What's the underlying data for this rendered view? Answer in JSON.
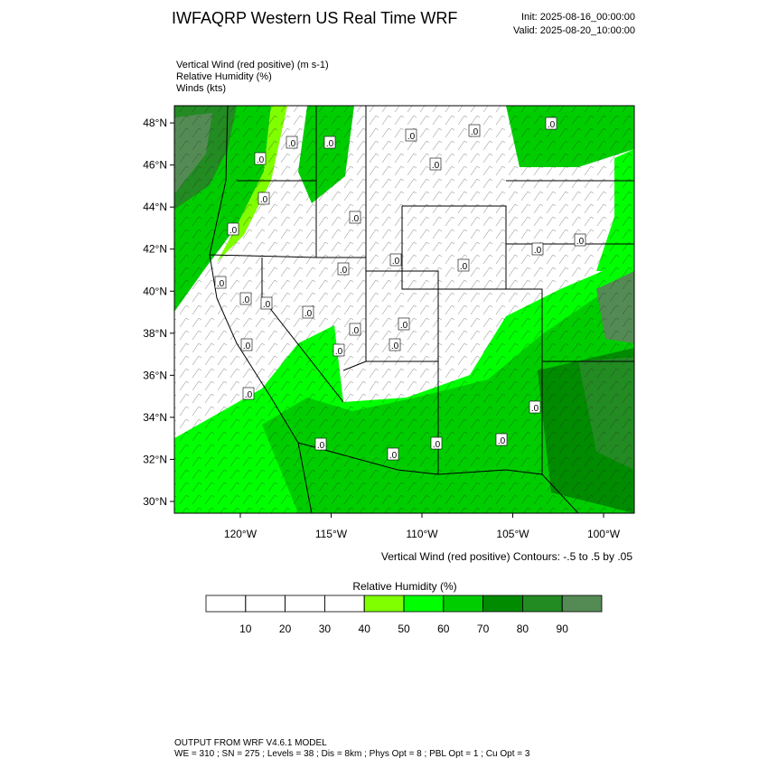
{
  "header": {
    "title": "IWFAQRP Western US Real Time WRF",
    "init": "Init: 2025-08-16_00:00:00",
    "valid": "Valid: 2025-08-20_10:00:00"
  },
  "fields": [
    "Vertical Wind (red positive)   (m s-1)",
    "Relative Humidity   (%)",
    "Winds   (kts)"
  ],
  "map": {
    "lonlim": [
      -123.63,
      -98.31
    ],
    "latlim": [
      29.44,
      48.82
    ],
    "lat_ticks": [
      {
        "value": 30,
        "label": "30°N"
      },
      {
        "value": 32,
        "label": "32°N"
      },
      {
        "value": 34,
        "label": "34°N"
      },
      {
        "value": 36,
        "label": "36°N"
      },
      {
        "value": 38,
        "label": "38°N"
      },
      {
        "value": 40,
        "label": "40°N"
      },
      {
        "value": 42,
        "label": "42°N"
      },
      {
        "value": 44,
        "label": "44°N"
      },
      {
        "value": 46,
        "label": "46°N"
      },
      {
        "value": 48,
        "label": "48°N"
      }
    ],
    "lon_ticks": [
      {
        "value": -120,
        "label": "120°W"
      },
      {
        "value": -115,
        "label": "115°W"
      },
      {
        "value": -110,
        "label": "110°W"
      },
      {
        "value": -105,
        "label": "105°W"
      },
      {
        "value": -100,
        "label": "100°W"
      }
    ],
    "contour_label": ".0",
    "contour_note": "Vertical Wind (red positive) Contours: -.5 to .5 by .05"
  },
  "colorbar": {
    "title": "Relative Humidity  (%)",
    "levels": [
      10,
      20,
      30,
      40,
      50,
      60,
      70,
      80,
      90
    ],
    "colors": [
      "#ffffff",
      "#ffffff",
      "#ffffff",
      "#ffffff",
      "#7fff00",
      "#00ff00",
      "#00cd00",
      "#008b00",
      "#228b22",
      "#548b54"
    ]
  },
  "footer": {
    "line1": "OUTPUT FROM WRF V4.6.1 MODEL",
    "line2": "WE = 310 ; SN = 275 ; Levels = 38 ; Dis = 8km ; Phys Opt = 8 ; PBL Opt = 1 ; Cu Opt = 3"
  }
}
